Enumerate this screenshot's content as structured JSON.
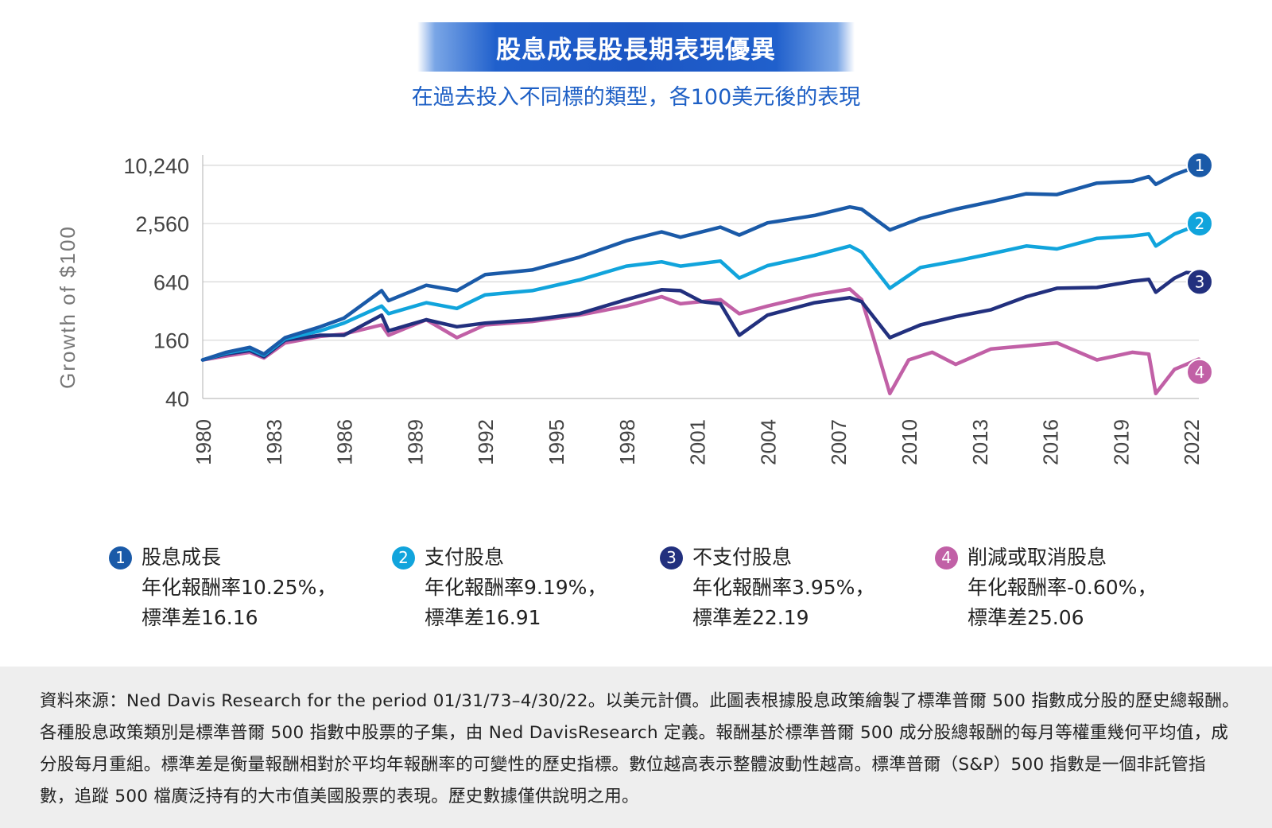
{
  "title": "股息成長股長期表現優異",
  "subtitle": "在過去投入不同標的類型，各100美元後的表現",
  "chart_data": {
    "type": "line",
    "ylabel": "Growth of $100",
    "y_scale": "log",
    "yticks": [
      "10,240",
      "2,560",
      "640",
      "160",
      "40"
    ],
    "ytick_values": [
      10240,
      2560,
      640,
      160,
      40
    ],
    "xticks": [
      "1980",
      "1983",
      "1986",
      "1989",
      "1992",
      "1995",
      "1998",
      "2001",
      "2004",
      "2007",
      "2010",
      "2013",
      "2016",
      "2019",
      "2022"
    ],
    "xlim": [
      1980,
      2022.33
    ],
    "grid": true,
    "series": [
      {
        "name": "股息成長",
        "marker": "1",
        "color": "#1a5aa8",
        "x": [
          1980,
          1981,
          1982,
          1982.6,
          1983.5,
          1985,
          1986,
          1987.6,
          1987.9,
          1989.5,
          1990.8,
          1992,
          1994,
          1996,
          1998,
          1999.5,
          2000.3,
          2002,
          2002.8,
          2004,
          2006,
          2007.5,
          2008,
          2009.2,
          2010.5,
          2012,
          2013.5,
          2015,
          2016.3,
          2018,
          2019.5,
          2020.2,
          2020.5,
          2021.3,
          2022.33
        ],
        "y": [
          100,
          120,
          135,
          115,
          170,
          220,
          270,
          520,
          410,
          590,
          520,
          760,
          850,
          1150,
          1700,
          2100,
          1850,
          2350,
          1950,
          2600,
          3100,
          3800,
          3600,
          2200,
          2900,
          3600,
          4300,
          5200,
          5100,
          6700,
          7000,
          7800,
          6500,
          8200,
          10100
        ]
      },
      {
        "name": "支付股息",
        "marker": "2",
        "color": "#11a4dc",
        "x": [
          1980,
          1981,
          1982,
          1982.6,
          1983.5,
          1985,
          1986,
          1987.6,
          1987.9,
          1989.5,
          1990.8,
          1992,
          1994,
          1996,
          1998,
          1999.5,
          2000.3,
          2002,
          2002.8,
          2004,
          2006,
          2007.5,
          2008,
          2009.2,
          2010.5,
          2012,
          2013.5,
          2015,
          2016.3,
          2018,
          2019.5,
          2020.2,
          2020.5,
          2021.3,
          2022.33
        ],
        "y": [
          100,
          118,
          130,
          112,
          165,
          200,
          240,
          360,
          300,
          390,
          340,
          470,
          520,
          670,
          930,
          1030,
          930,
          1050,
          700,
          940,
          1200,
          1500,
          1300,
          550,
          900,
          1050,
          1250,
          1500,
          1400,
          1800,
          1900,
          2000,
          1500,
          2000,
          2500
        ]
      },
      {
        "name": "不支付股息",
        "marker": "3",
        "color": "#22307e",
        "x": [
          1980,
          1981,
          1982,
          1982.6,
          1983.5,
          1985,
          1986,
          1987.6,
          1987.9,
          1989.5,
          1990.8,
          1992,
          1994,
          1996,
          1998,
          1999.5,
          2000.3,
          2001.2,
          2002,
          2002.8,
          2004,
          2006,
          2007.5,
          2008,
          2009.2,
          2010.5,
          2012,
          2013.5,
          2015,
          2016.3,
          2018,
          2019.5,
          2020.2,
          2020.5,
          2021.3,
          2021.8,
          2022.33
        ],
        "y": [
          100,
          115,
          125,
          108,
          160,
          180,
          180,
          290,
          200,
          260,
          220,
          240,
          260,
          300,
          420,
          530,
          520,
          400,
          380,
          180,
          290,
          390,
          440,
          400,
          170,
          230,
          280,
          330,
          450,
          550,
          560,
          650,
          680,
          500,
          700,
          800,
          780
        ]
      },
      {
        "name": "削減或取消股息",
        "marker": "4",
        "color": "#c160a6",
        "x": [
          1980,
          1981,
          1982,
          1982.6,
          1983.5,
          1985,
          1986,
          1987.6,
          1987.9,
          1989.5,
          1990.8,
          1992,
          1994,
          1996,
          1998,
          1999.5,
          2000.3,
          2002,
          2002.8,
          2004,
          2006,
          2007.5,
          2008,
          2008.5,
          2009.2,
          2010,
          2011,
          2012,
          2013.5,
          2015,
          2016.3,
          2018,
          2019.5,
          2020.2,
          2020.5,
          2021.3,
          2022.33
        ],
        "y": [
          100,
          110,
          120,
          105,
          150,
          175,
          185,
          230,
          180,
          260,
          170,
          230,
          250,
          290,
          360,
          450,
          380,
          420,
          300,
          360,
          470,
          540,
          420,
          170,
          45,
          100,
          120,
          90,
          130,
          140,
          150,
          100,
          120,
          115,
          45,
          80,
          102
        ]
      }
    ]
  },
  "legend": [
    {
      "num": "1",
      "name": "股息成長",
      "line2": "年化報酬率10.25%，",
      "line3": "標準差16.16",
      "color": "#1a5aa8"
    },
    {
      "num": "2",
      "name": "支付股息",
      "line2": "年化報酬率9.19%，",
      "line3": "標準差16.91",
      "color": "#11a4dc"
    },
    {
      "num": "3",
      "name": "不支付股息",
      "line2": "年化報酬率3.95%，",
      "line3": "標準差22.19",
      "color": "#22307e"
    },
    {
      "num": "4",
      "name": "削減或取消股息",
      "line2": "年化報酬率-0.60%，",
      "line3": "標準差25.06",
      "color": "#c160a6"
    }
  ],
  "footer": "資料來源：Ned Davis Research for the period 01/31/73–4/30/22。以美元計價。此圖表根據股息政策繪製了標準普爾 500 指數成分股的歷史總報酬。各種股息政策類別是標準普爾 500 指數中股票的子集，由 Ned DavisResearch 定義。報酬基於標準普爾 500 成分股總報酬的每月等權重幾何平均值，成分股每月重組。標準差是衡量報酬相對於平均年報酬率的可變性的歷史指標。數位越高表示整體波動性越高。標準普爾（S&P）500 指數是一個非託管指數，追蹤 500 檔廣泛持有的大市值美國股票的表現。歷史數據僅供說明之用。"
}
